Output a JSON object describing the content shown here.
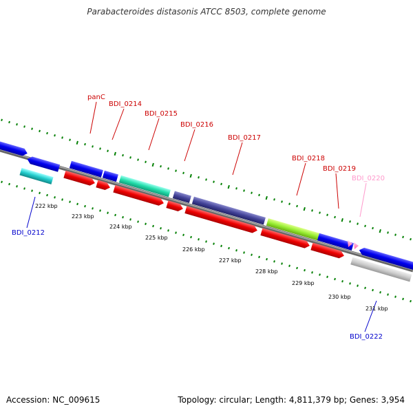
{
  "title": "Parabacteroides distasonis ATCC 8503, complete genome",
  "footer": {
    "accession": "Accession: NC_009615",
    "summary": "Topology: circular; Length: 4,811,379 bp; Genes: 3,954"
  },
  "scale_labels": [
    "222 kbp",
    "223 kbp",
    "224 kbp",
    "225 kbp",
    "226 kbp",
    "227 kbp",
    "228 kbp",
    "229 kbp",
    "230 kbp",
    "231 kbp"
  ],
  "colors": {
    "axis": "#7f7f7f",
    "dots": "#007f00",
    "label_red": "#cc0000",
    "label_blue": "#0000cc",
    "label_pink": "#ff99cc"
  },
  "gene_labels": [
    {
      "id": "panC",
      "text": "panC",
      "color": "#cc0000"
    },
    {
      "id": "BDI_0214",
      "text": "BDI_0214",
      "color": "#cc0000"
    },
    {
      "id": "BDI_0215",
      "text": "BDI_0215",
      "color": "#cc0000"
    },
    {
      "id": "BDI_0216",
      "text": "BDI_0216",
      "color": "#cc0000"
    },
    {
      "id": "BDI_0217",
      "text": "BDI_0217",
      "color": "#cc0000"
    },
    {
      "id": "BDI_0218",
      "text": "BDI_0218",
      "color": "#cc0000"
    },
    {
      "id": "BDI_0219",
      "text": "BDI_0219",
      "color": "#cc0000"
    },
    {
      "id": "BDI_0220",
      "text": "BDI_0220",
      "color": "#ff99cc"
    },
    {
      "id": "BDI_0212",
      "text": "BDI_0212",
      "color": "#0000cc"
    },
    {
      "id": "BDI_0222",
      "text": "BDI_0222",
      "color": "#0000cc"
    }
  ]
}
